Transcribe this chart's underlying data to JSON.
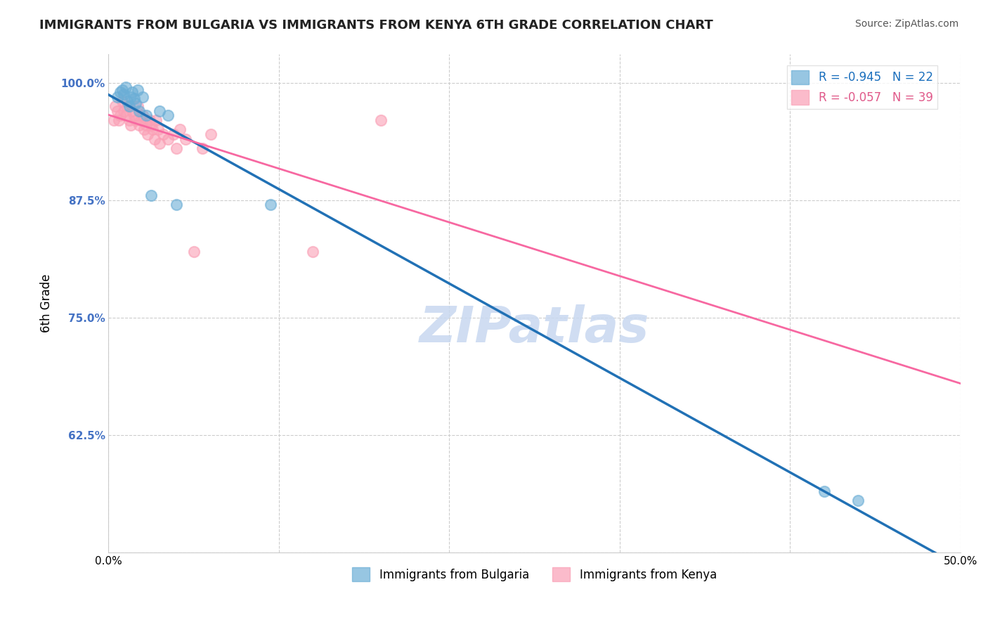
{
  "title": "IMMIGRANTS FROM BULGARIA VS IMMIGRANTS FROM KENYA 6TH GRADE CORRELATION CHART",
  "source_text": "Source: ZipAtlas.com",
  "xlabel_bottom": "Immigrants from Bulgaria",
  "xlabel_bottom2": "Immigrants from Kenya",
  "ylabel": "6th Grade",
  "watermark": "ZIPatlas",
  "xlim": [
    0.0,
    0.5
  ],
  "ylim": [
    0.5,
    1.03
  ],
  "xticks": [
    0.0,
    0.1,
    0.2,
    0.3,
    0.4,
    0.5
  ],
  "xtick_labels": [
    "0.0%",
    "",
    "",
    "",
    "",
    "50.0%"
  ],
  "yticks": [
    0.5,
    0.625,
    0.75,
    0.875,
    1.0
  ],
  "ytick_labels": [
    "",
    "62.5%",
    "75.0%",
    "87.5%",
    "100.0%"
  ],
  "blue_R": -0.945,
  "blue_N": 22,
  "pink_R": -0.057,
  "pink_N": 39,
  "blue_color": "#6baed6",
  "pink_color": "#fa9fb5",
  "blue_line_color": "#2171b5",
  "pink_line_color": "#f768a1",
  "title_color": "#222222",
  "source_color": "#555555",
  "axis_color": "#cccccc",
  "grid_color": "#cccccc",
  "ytick_color": "#4472c4",
  "legend_R_color_blue": "#1a6fbd",
  "legend_R_color_pink": "#e05a8a",
  "watermark_color": "#c8d8f0",
  "blue_scatter_x": [
    0.005,
    0.007,
    0.008,
    0.009,
    0.01,
    0.011,
    0.012,
    0.013,
    0.014,
    0.015,
    0.016,
    0.017,
    0.018,
    0.02,
    0.022,
    0.025,
    0.03,
    0.035,
    0.04,
    0.095,
    0.42,
    0.44
  ],
  "blue_scatter_y": [
    0.985,
    0.99,
    0.992,
    0.988,
    0.995,
    0.98,
    0.975,
    0.985,
    0.99,
    0.983,
    0.978,
    0.992,
    0.97,
    0.985,
    0.965,
    0.88,
    0.97,
    0.965,
    0.87,
    0.87,
    0.565,
    0.555
  ],
  "pink_scatter_x": [
    0.003,
    0.004,
    0.005,
    0.006,
    0.007,
    0.008,
    0.009,
    0.01,
    0.011,
    0.012,
    0.013,
    0.014,
    0.015,
    0.016,
    0.017,
    0.018,
    0.019,
    0.02,
    0.021,
    0.022,
    0.023,
    0.024,
    0.025,
    0.026,
    0.027,
    0.028,
    0.029,
    0.03,
    0.032,
    0.035,
    0.038,
    0.04,
    0.042,
    0.045,
    0.05,
    0.055,
    0.06,
    0.12,
    0.16
  ],
  "pink_scatter_y": [
    0.96,
    0.975,
    0.97,
    0.96,
    0.965,
    0.98,
    0.97,
    0.965,
    0.975,
    0.96,
    0.955,
    0.97,
    0.965,
    0.96,
    0.975,
    0.955,
    0.96,
    0.965,
    0.95,
    0.955,
    0.945,
    0.96,
    0.955,
    0.95,
    0.94,
    0.96,
    0.95,
    0.935,
    0.945,
    0.94,
    0.945,
    0.93,
    0.95,
    0.94,
    0.82,
    0.93,
    0.945,
    0.82,
    0.96
  ]
}
